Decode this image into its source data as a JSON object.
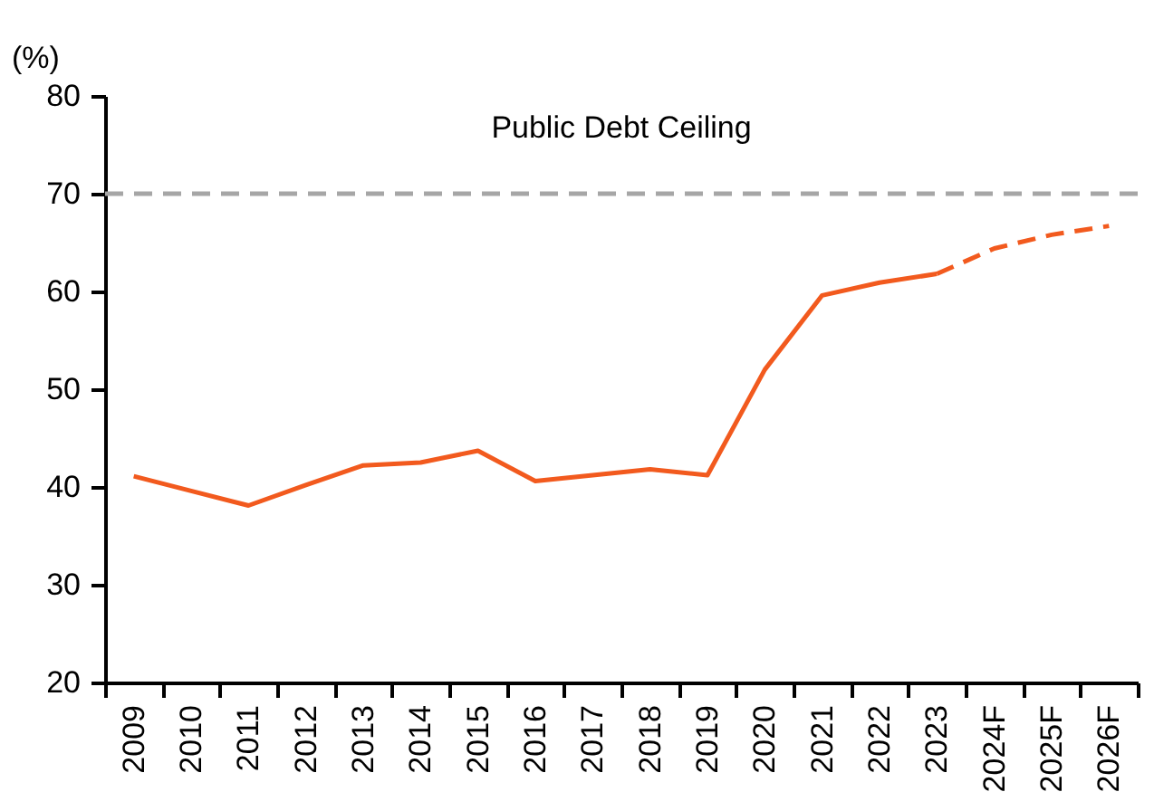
{
  "chart_data": {
    "type": "line",
    "ylabel": "(%)",
    "categories": [
      "2009",
      "2010",
      "2011",
      "2012",
      "2013",
      "2014",
      "2015",
      "2016",
      "2017",
      "2018",
      "2019",
      "2020",
      "2021",
      "2022",
      "2023",
      "2024F",
      "2025F",
      "2026F"
    ],
    "series": [
      {
        "color": "#f25a1e",
        "line_style": "solid",
        "values": [
          41.1,
          39.6,
          38.1,
          40.2,
          42.2,
          42.5,
          43.7,
          40.6,
          41.2,
          41.8,
          41.2,
          52.0,
          59.6,
          60.9,
          61.8,
          null,
          null,
          null
        ]
      },
      {
        "color": "#f25a1e",
        "line_style": "dashed",
        "values": [
          null,
          null,
          null,
          null,
          null,
          null,
          null,
          null,
          null,
          null,
          null,
          null,
          null,
          null,
          61.8,
          64.4,
          65.8,
          66.7
        ]
      }
    ],
    "ylim": [
      20,
      80
    ],
    "yticks": [
      20,
      30,
      40,
      50,
      60,
      70,
      80
    ],
    "grid": false,
    "marker": "none",
    "ref_lines": [
      {
        "axis": "y",
        "value": 70,
        "label": "Public Debt Ceiling",
        "color": "#a6a6a6",
        "line_style": "dashed"
      }
    ]
  }
}
